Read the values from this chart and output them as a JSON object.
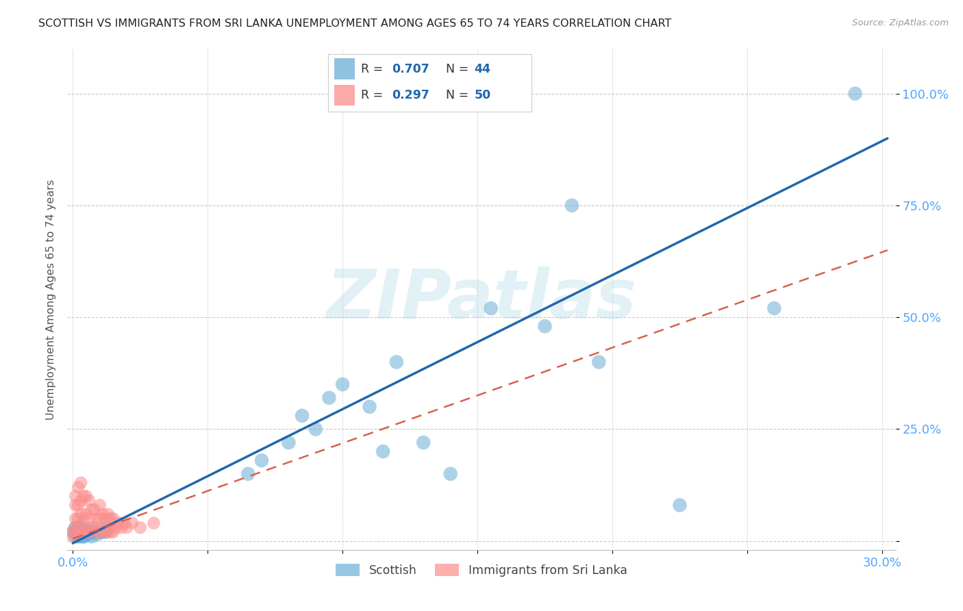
{
  "title": "SCOTTISH VS IMMIGRANTS FROM SRI LANKA UNEMPLOYMENT AMONG AGES 65 TO 74 YEARS CORRELATION CHART",
  "source": "Source: ZipAtlas.com",
  "ylabel": "Unemployment Among Ages 65 to 74 years",
  "xlim": [
    -0.002,
    0.305
  ],
  "ylim": [
    -0.02,
    1.1
  ],
  "scottish_color": "#6baed6",
  "scottish_edge": "#4292c6",
  "srilanka_color": "#fc8d8d",
  "srilanka_edge": "#e05c5c",
  "scottish_line_color": "#2166ac",
  "srilanka_line_color": "#d6604d",
  "watermark_text": "ZIPatlas",
  "watermark_color": "#add8e6",
  "background_color": "#ffffff",
  "grid_color": "#c8c8c8",
  "legend_r_color": "#2166ac",
  "legend_border_color": "#cccccc",
  "tick_color": "#4da6ff",
  "title_color": "#222222",
  "ylabel_color": "#555555",
  "source_color": "#999999",
  "scottish_x": [
    0.0,
    0.001,
    0.001,
    0.001,
    0.002,
    0.002,
    0.002,
    0.003,
    0.003,
    0.003,
    0.004,
    0.004,
    0.004,
    0.005,
    0.005,
    0.006,
    0.006,
    0.007,
    0.007,
    0.008,
    0.009,
    0.01,
    0.011,
    0.012,
    0.013,
    0.065,
    0.07,
    0.08,
    0.085,
    0.09,
    0.095,
    0.1,
    0.11,
    0.115,
    0.12,
    0.13,
    0.14,
    0.155,
    0.175,
    0.185,
    0.195,
    0.225,
    0.26,
    0.29
  ],
  "scottish_y": [
    0.02,
    0.01,
    0.02,
    0.03,
    0.01,
    0.02,
    0.03,
    0.01,
    0.02,
    0.03,
    0.01,
    0.02,
    0.01,
    0.015,
    0.02,
    0.015,
    0.025,
    0.01,
    0.02,
    0.02,
    0.015,
    0.02,
    0.02,
    0.02,
    0.03,
    0.15,
    0.18,
    0.22,
    0.28,
    0.25,
    0.32,
    0.35,
    0.3,
    0.2,
    0.4,
    0.22,
    0.15,
    0.52,
    0.48,
    0.75,
    0.4,
    0.08,
    0.52,
    1.0
  ],
  "srilanka_x": [
    0.0,
    0.0,
    0.001,
    0.001,
    0.001,
    0.001,
    0.002,
    0.002,
    0.002,
    0.002,
    0.003,
    0.003,
    0.003,
    0.003,
    0.004,
    0.004,
    0.004,
    0.005,
    0.005,
    0.005,
    0.006,
    0.006,
    0.006,
    0.007,
    0.007,
    0.008,
    0.008,
    0.009,
    0.009,
    0.01,
    0.01,
    0.01,
    0.011,
    0.011,
    0.012,
    0.012,
    0.013,
    0.013,
    0.014,
    0.014,
    0.015,
    0.015,
    0.016,
    0.017,
    0.018,
    0.019,
    0.02,
    0.022,
    0.025,
    0.03
  ],
  "srilanka_y": [
    0.01,
    0.02,
    0.03,
    0.05,
    0.08,
    0.1,
    0.02,
    0.05,
    0.08,
    0.12,
    0.03,
    0.06,
    0.09,
    0.13,
    0.02,
    0.05,
    0.1,
    0.02,
    0.06,
    0.1,
    0.02,
    0.05,
    0.09,
    0.03,
    0.07,
    0.03,
    0.07,
    0.02,
    0.05,
    0.02,
    0.05,
    0.08,
    0.03,
    0.06,
    0.02,
    0.05,
    0.02,
    0.06,
    0.02,
    0.05,
    0.02,
    0.05,
    0.03,
    0.04,
    0.03,
    0.04,
    0.03,
    0.04,
    0.03,
    0.04
  ],
  "scottish_line_x0": 0.0,
  "scottish_line_x1": 0.302,
  "scottish_line_y0": -0.005,
  "scottish_line_y1": 0.9,
  "srilanka_line_x0": 0.0,
  "srilanka_line_x1": 0.302,
  "srilanka_line_y0": 0.005,
  "srilanka_line_y1": 0.65,
  "legend_r_scottish": "0.707",
  "legend_n_scottish": "44",
  "legend_r_srilanka": "0.297",
  "legend_n_srilanka": "50"
}
